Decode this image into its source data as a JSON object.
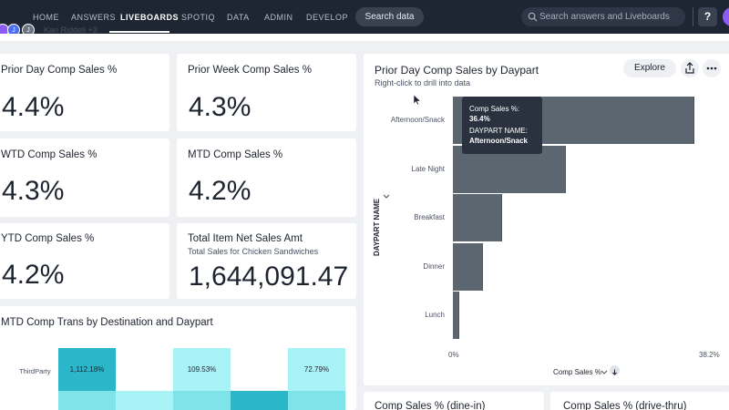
{
  "nav": {
    "items": [
      "HOME",
      "ANSWERS",
      "LIVEBOARDS",
      "SPOTIQ",
      "DATA",
      "ADMIN",
      "DEVELOP"
    ],
    "active": "LIVEBOARDS",
    "search_data_label": "Search data",
    "global_search_placeholder": "Search answers and Liveboards",
    "help_label": "?"
  },
  "owners": {
    "avatars": [
      "J",
      "J"
    ],
    "text": "Kari Riddell +3"
  },
  "kpis": [
    {
      "title": "Prior Day Comp Sales %",
      "value": "4.4%"
    },
    {
      "title": "Prior Week Comp Sales %",
      "value": "4.3%"
    },
    {
      "title": "WTD Comp Sales %",
      "value": "4.3%"
    },
    {
      "title": "MTD Comp Sales %",
      "value": "4.2%"
    },
    {
      "title": "YTD Comp Sales %",
      "value": "4.2%"
    },
    {
      "title": "Total Item Net Sales Amt",
      "subtitle": "Total Sales for Chicken Sandwiches",
      "value": "1,644,091.47"
    }
  ],
  "daypart_chart": {
    "title": "Prior Day Comp Sales by Daypart",
    "subtitle": "Right-click to drill into data",
    "explore_label": "Explore",
    "y_axis_title": "DAYPART NAME",
    "x_axis_title": "Comp Sales %",
    "x_min_label": "0%",
    "x_max_label": "38.2%",
    "tooltip": {
      "measure_label": "Comp Sales %:",
      "measure_value": "36.4%",
      "dim_label": "DAYPART NAME:",
      "dim_value": "Afternoon/Snack"
    }
  },
  "chart_data": {
    "type": "bar",
    "orientation": "horizontal",
    "categories": [
      "Afternoon/Snack",
      "Late Night",
      "Breakfast",
      "Dinner",
      "Lunch"
    ],
    "values": [
      36.4,
      17.0,
      7.4,
      4.5,
      1.0
    ],
    "xlim": [
      0,
      38.2
    ],
    "ylabel": "DAYPART NAME",
    "xlabel": "Comp Sales %",
    "bar_color": "#5c6670"
  },
  "trans_chart": {
    "title": "MTD Comp Trans by Destination and Daypart",
    "row_label": "ThirdParty",
    "cells": [
      "1,112.18%",
      "",
      "109.53%",
      "",
      "72.79%"
    ]
  },
  "bottom_cards": [
    "Comp Sales % (dine-in)",
    "Comp Sales % (drive-thru)"
  ],
  "colors": {
    "nav_bg": "#1e2533",
    "accent_teal_dark": "#2bb7c9",
    "accent_teal_light": "#a9f2f5",
    "bar": "#5c6670"
  }
}
